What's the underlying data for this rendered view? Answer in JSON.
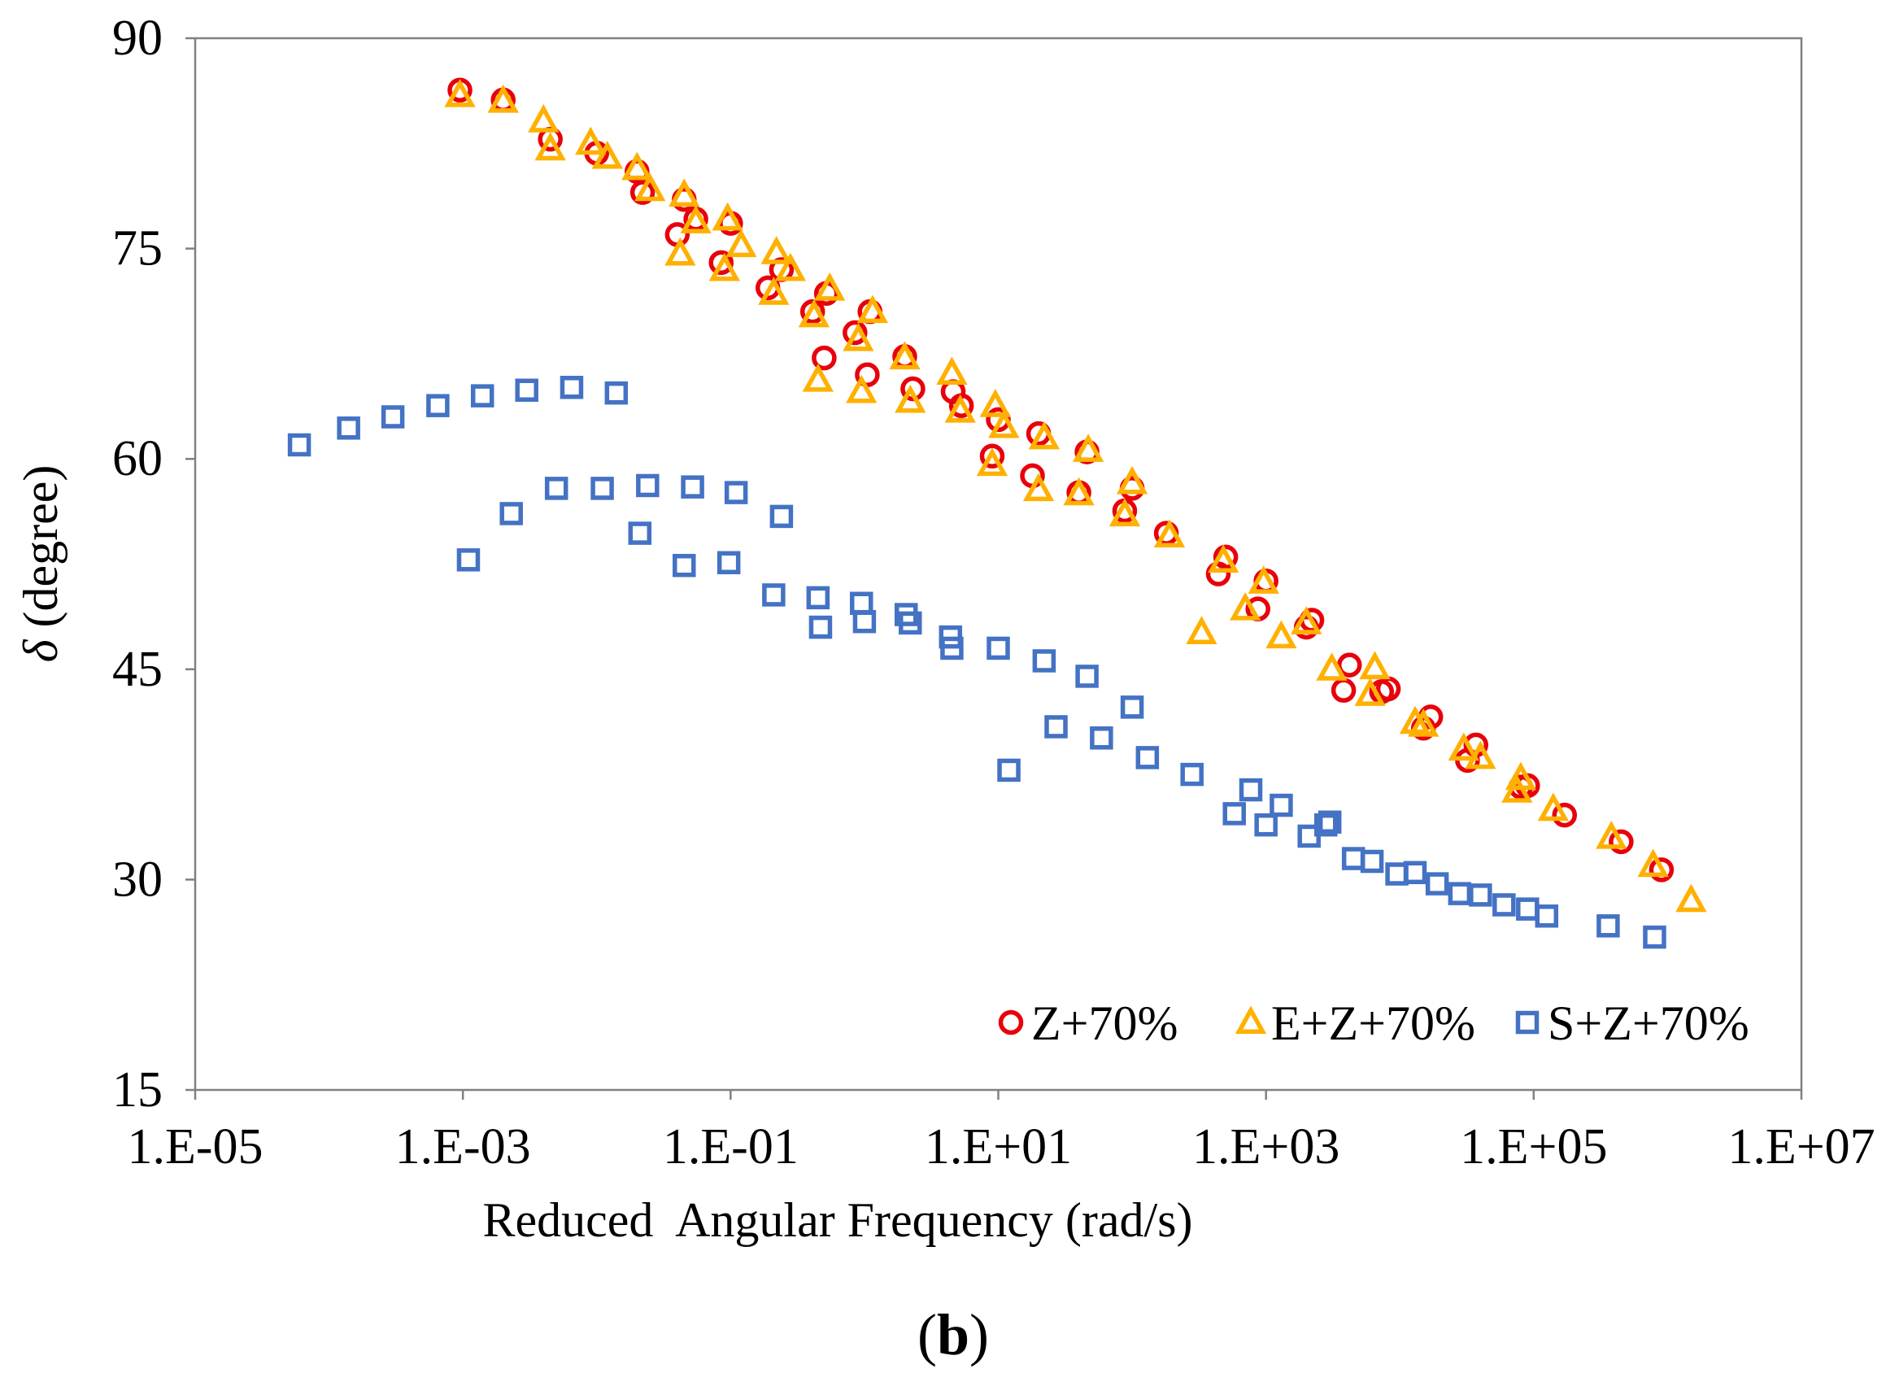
{
  "chart_data": {
    "type": "scatter",
    "panel_label_open": "(",
    "panel_label_letter": "b",
    "panel_label_close": ")",
    "xlabel": "Reduced  Angular Frequency (rad/s)",
    "ylabel_symbol": "δ",
    "ylabel_text": " (degree)",
    "x_scale": "log",
    "xlim": [
      1e-05,
      10000000.0
    ],
    "ylim": [
      15,
      90
    ],
    "x_ticks": [
      {
        "value": 1e-05,
        "label": "1.E-05"
      },
      {
        "value": 0.001,
        "label": "1.E-03"
      },
      {
        "value": 0.1,
        "label": "1.E-01"
      },
      {
        "value": 10.0,
        "label": "1.E+01"
      },
      {
        "value": 1000.0,
        "label": "1.E+03"
      },
      {
        "value": 100000.0,
        "label": "1.E+05"
      },
      {
        "value": 10000000.0,
        "label": "1.E+07"
      }
    ],
    "y_ticks": [
      {
        "value": 15,
        "label": "15"
      },
      {
        "value": 30,
        "label": "30"
      },
      {
        "value": 45,
        "label": "45"
      },
      {
        "value": 60,
        "label": "60"
      },
      {
        "value": 75,
        "label": "75"
      },
      {
        "value": 90,
        "label": "90"
      }
    ],
    "grid": false,
    "legend_position": "bottom-right",
    "series": [
      {
        "name": "Z+70%",
        "marker": "circle",
        "color": "#e8000b",
        "points": [
          [
            0.00095,
            86.3
          ],
          [
            0.002,
            85.6
          ],
          [
            0.0045,
            82.8
          ],
          [
            0.01,
            81.8
          ],
          [
            0.02,
            80.5
          ],
          [
            0.022,
            79.0
          ],
          [
            0.04,
            76.0
          ],
          [
            0.045,
            78.5
          ],
          [
            0.055,
            77.1
          ],
          [
            0.085,
            74.0
          ],
          [
            0.1,
            76.8
          ],
          [
            0.19,
            72.2
          ],
          [
            0.24,
            73.5
          ],
          [
            0.41,
            70.5
          ],
          [
            0.5,
            67.2
          ],
          [
            0.52,
            71.8
          ],
          [
            0.85,
            69.0
          ],
          [
            1.05,
            66.0
          ],
          [
            1.1,
            70.5
          ],
          [
            2.0,
            67.3
          ],
          [
            2.3,
            65.0
          ],
          [
            4.6,
            64.8
          ],
          [
            5.3,
            63.8
          ],
          [
            9.0,
            60.2
          ],
          [
            10.0,
            62.8
          ],
          [
            18.0,
            58.8
          ],
          [
            20.0,
            61.8
          ],
          [
            40.0,
            57.6
          ],
          [
            46.0,
            60.5
          ],
          [
            88.0,
            56.3
          ],
          [
            100.0,
            57.9
          ],
          [
            180.0,
            54.7
          ],
          [
            440.0,
            51.8
          ],
          [
            500.0,
            53.0
          ],
          [
            870.0,
            49.3
          ],
          [
            1000.0,
            51.3
          ],
          [
            2000.0,
            48.0
          ],
          [
            2200.0,
            48.5
          ],
          [
            3800.0,
            43.5
          ],
          [
            4200.0,
            45.3
          ],
          [
            7300.0,
            43.4
          ],
          [
            8200.0,
            43.6
          ],
          [
            15000.0,
            40.8
          ],
          [
            17000.0,
            41.6
          ],
          [
            32000.0,
            38.5
          ],
          [
            37000.0,
            39.6
          ],
          [
            80000.0,
            36.6
          ],
          [
            90000.0,
            36.7
          ],
          [
            170000.0,
            34.6
          ],
          [
            450000.0,
            32.7
          ],
          [
            900000.0,
            30.7
          ]
        ]
      },
      {
        "name": "E+Z+70%",
        "marker": "triangle",
        "color": "#ffb000",
        "points": [
          [
            0.00095,
            85.9
          ],
          [
            0.002,
            85.5
          ],
          [
            0.004,
            84.1
          ],
          [
            0.0045,
            82.1
          ],
          [
            0.009,
            82.5
          ],
          [
            0.012,
            81.5
          ],
          [
            0.02,
            80.7
          ],
          [
            0.025,
            79.2
          ],
          [
            0.042,
            74.6
          ],
          [
            0.045,
            78.8
          ],
          [
            0.055,
            76.9
          ],
          [
            0.09,
            73.5
          ],
          [
            0.095,
            77.1
          ],
          [
            0.12,
            75.2
          ],
          [
            0.21,
            71.8
          ],
          [
            0.22,
            74.7
          ],
          [
            0.28,
            73.5
          ],
          [
            0.42,
            70.2
          ],
          [
            0.45,
            65.6
          ],
          [
            0.55,
            72.1
          ],
          [
            0.95,
            64.8
          ],
          [
            0.9,
            68.5
          ],
          [
            1.15,
            70.5
          ],
          [
            2.0,
            67.2
          ],
          [
            2.2,
            64.1
          ],
          [
            4.5,
            66.1
          ],
          [
            5.2,
            63.4
          ],
          [
            9.0,
            59.6
          ],
          [
            9.5,
            63.8
          ],
          [
            11.0,
            62.3
          ],
          [
            20.0,
            57.8
          ],
          [
            22.0,
            61.5
          ],
          [
            40.0,
            57.5
          ],
          [
            47.0,
            60.6
          ],
          [
            88.0,
            56.0
          ],
          [
            100.0,
            58.3
          ],
          [
            190.0,
            54.5
          ],
          [
            330.0,
            47.6
          ],
          [
            480.0,
            52.7
          ],
          [
            700.0,
            49.3
          ],
          [
            960.0,
            51.2
          ],
          [
            1300.0,
            47.3
          ],
          [
            2000.0,
            48.3
          ],
          [
            3100.0,
            45.0
          ],
          [
            6000.0,
            43.2
          ],
          [
            6500.0,
            45.1
          ],
          [
            13000.0,
            41.2
          ],
          [
            15000.0,
            41.0
          ],
          [
            30000.0,
            39.3
          ],
          [
            40000.0,
            38.7
          ],
          [
            75000.0,
            36.3
          ],
          [
            80000.0,
            37.2
          ],
          [
            140000.0,
            35.0
          ],
          [
            380000.0,
            33.0
          ],
          [
            780000.0,
            31.0
          ],
          [
            1500000.0,
            28.5
          ]
        ]
      },
      {
        "name": "S+Z+70%",
        "marker": "square",
        "color": "#4472c4",
        "points": [
          [
            6e-05,
            61.0
          ],
          [
            0.00014,
            62.2
          ],
          [
            0.0003,
            63.0
          ],
          [
            0.00065,
            63.8
          ],
          [
            0.0014,
            64.5
          ],
          [
            0.003,
            64.9
          ],
          [
            0.0065,
            65.1
          ],
          [
            0.014,
            64.7
          ],
          [
            0.0011,
            52.8
          ],
          [
            0.0023,
            56.1
          ],
          [
            0.005,
            57.9
          ],
          [
            0.011,
            57.9
          ],
          [
            0.024,
            58.1
          ],
          [
            0.052,
            58.0
          ],
          [
            0.11,
            57.6
          ],
          [
            0.24,
            55.9
          ],
          [
            0.021,
            54.7
          ],
          [
            0.045,
            52.4
          ],
          [
            0.097,
            52.6
          ],
          [
            0.21,
            50.3
          ],
          [
            0.45,
            50.1
          ],
          [
            0.47,
            48.0
          ],
          [
            0.95,
            49.7
          ],
          [
            1.0,
            48.4
          ],
          [
            2.05,
            48.9
          ],
          [
            2.2,
            48.3
          ],
          [
            4.4,
            47.3
          ],
          [
            4.5,
            46.5
          ],
          [
            10.0,
            46.5
          ],
          [
            12.0,
            37.8
          ],
          [
            22.0,
            45.6
          ],
          [
            27.0,
            40.9
          ],
          [
            46.0,
            44.5
          ],
          [
            59.0,
            40.1
          ],
          [
            100.0,
            42.3
          ],
          [
            130.0,
            38.7
          ],
          [
            280.0,
            37.5
          ],
          [
            580.0,
            34.7
          ],
          [
            770.0,
            36.4
          ],
          [
            1000.0,
            33.9
          ],
          [
            1300.0,
            35.3
          ],
          [
            2100.0,
            33.1
          ],
          [
            2800.0,
            33.9
          ],
          [
            3000.0,
            34.1
          ],
          [
            4500.0,
            31.5
          ],
          [
            6200.0,
            31.3
          ],
          [
            9500.0,
            30.4
          ],
          [
            13000.0,
            30.5
          ],
          [
            19000.0,
            29.7
          ],
          [
            28000.0,
            29.0
          ],
          [
            40000.0,
            28.9
          ],
          [
            60000.0,
            28.2
          ],
          [
            90000.0,
            27.9
          ],
          [
            125000.0,
            27.4
          ],
          [
            360000.0,
            26.7
          ],
          [
            800000.0,
            25.9
          ]
        ]
      }
    ]
  }
}
